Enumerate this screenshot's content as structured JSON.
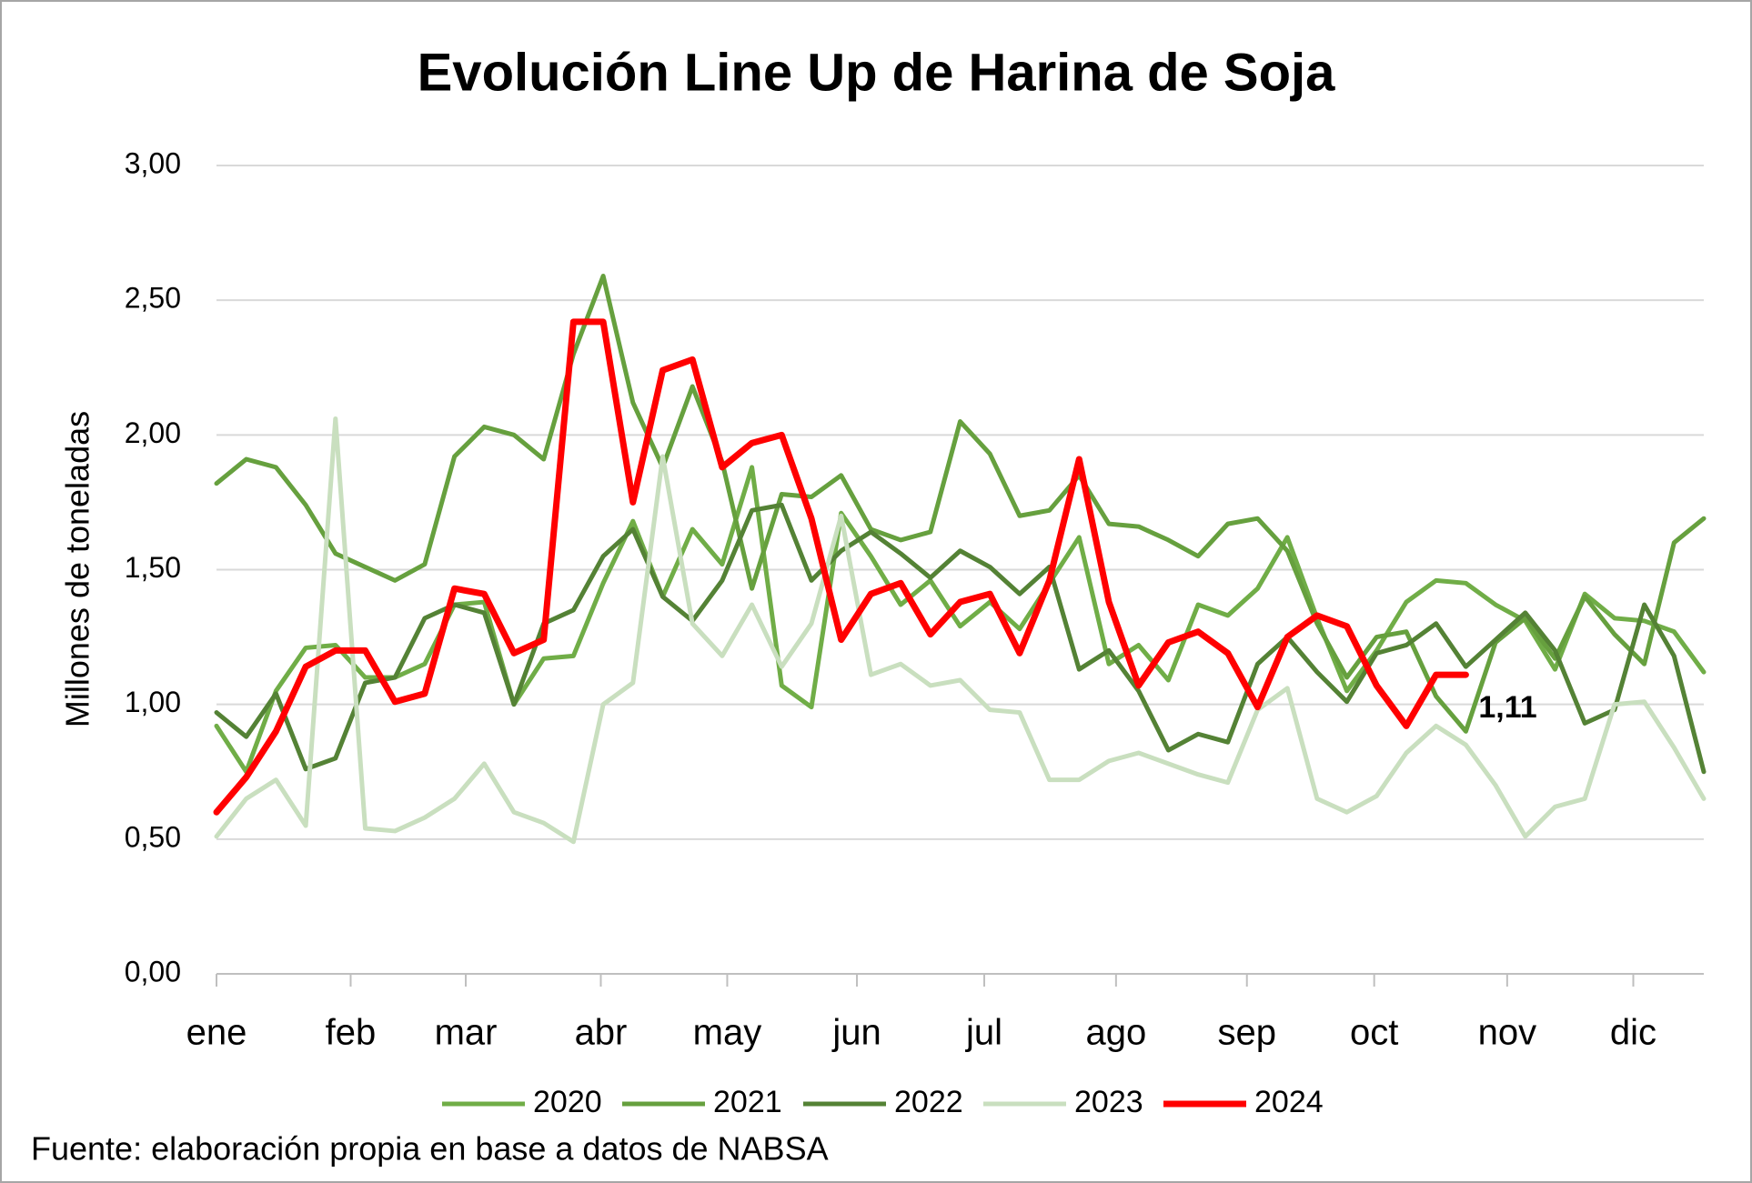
{
  "chart_data": {
    "type": "line",
    "title": "Evolución Line Up de Harina de Soja",
    "y_label": "Millones de toneladas",
    "source": "Fuente: elaboración propia en base a datos de NABSA",
    "x": [
      0,
      1,
      2,
      3,
      4,
      5,
      6,
      7,
      8,
      9,
      10,
      11,
      12,
      13,
      14,
      15,
      16,
      17,
      18,
      19,
      20,
      21,
      22,
      23,
      24,
      25,
      26,
      27,
      28,
      29,
      30,
      31,
      32,
      33,
      34,
      35,
      36,
      37,
      38,
      39,
      40,
      41,
      42,
      43,
      44,
      45,
      46,
      47,
      48,
      49,
      50
    ],
    "xlim": [
      0,
      50
    ],
    "xticks": [
      {
        "value": 0,
        "label": "ene"
      },
      {
        "value": 4.51,
        "label": "feb"
      },
      {
        "value": 8.38,
        "label": "mar"
      },
      {
        "value": 12.92,
        "label": "abr"
      },
      {
        "value": 17.17,
        "label": "may"
      },
      {
        "value": 21.53,
        "label": "jun"
      },
      {
        "value": 25.81,
        "label": "jul"
      },
      {
        "value": 30.24,
        "label": "ago"
      },
      {
        "value": 34.64,
        "label": "sep"
      },
      {
        "value": 38.92,
        "label": "oct"
      },
      {
        "value": 43.39,
        "label": "nov"
      },
      {
        "value": 47.63,
        "label": "dic"
      }
    ],
    "ylim": [
      0,
      3
    ],
    "yticks": [
      {
        "value": 0,
        "label": "0,00"
      },
      {
        "value": 0.5,
        "label": "0,50"
      },
      {
        "value": 1,
        "label": "1,00"
      },
      {
        "value": 1.5,
        "label": "1,50"
      },
      {
        "value": 2,
        "label": "2,00"
      },
      {
        "value": 2.5,
        "label": "2,50"
      },
      {
        "value": 3,
        "label": "3,00"
      }
    ],
    "grid": true,
    "legend": "bottom",
    "series": [
      {
        "name": "2020",
        "color": "#70ad47",
        "values": [
          0.92,
          0.75,
          1.05,
          1.21,
          1.22,
          1.1,
          1.1,
          1.15,
          1.37,
          1.38,
          1.0,
          1.17,
          1.18,
          1.45,
          1.68,
          1.4,
          1.65,
          1.52,
          1.88,
          1.07,
          0.99,
          1.71,
          1.55,
          1.37,
          1.46,
          1.29,
          1.38,
          1.28,
          1.45,
          1.62,
          1.15,
          1.22,
          1.09,
          1.37,
          1.33,
          1.43,
          1.62,
          1.32,
          1.05,
          1.2,
          1.38,
          1.46,
          1.45,
          1.37,
          1.31,
          1.13,
          1.41,
          1.32,
          1.31,
          1.27,
          1.12
        ]
      },
      {
        "name": "2021",
        "color": "#66a03e",
        "values": [
          1.82,
          1.91,
          1.88,
          1.74,
          1.56,
          1.51,
          1.46,
          1.52,
          1.92,
          2.03,
          2.0,
          1.91,
          2.3,
          2.59,
          2.12,
          1.88,
          2.18,
          1.9,
          1.43,
          1.78,
          1.77,
          1.85,
          1.65,
          1.61,
          1.64,
          2.05,
          1.93,
          1.7,
          1.72,
          1.85,
          1.67,
          1.66,
          1.61,
          1.55,
          1.67,
          1.69,
          1.57,
          1.3,
          1.1,
          1.25,
          1.27,
          1.03,
          0.9,
          1.23,
          1.32,
          1.17,
          1.4,
          1.26,
          1.15,
          1.6,
          1.69
        ]
      },
      {
        "name": "2022",
        "color": "#548235",
        "values": [
          0.97,
          0.88,
          1.04,
          0.76,
          0.8,
          1.08,
          1.1,
          1.32,
          1.37,
          1.34,
          1.0,
          1.3,
          1.35,
          1.55,
          1.65,
          1.4,
          1.31,
          1.46,
          1.72,
          1.74,
          1.46,
          1.57,
          1.64,
          1.56,
          1.47,
          1.57,
          1.51,
          1.41,
          1.51,
          1.13,
          1.2,
          1.05,
          0.83,
          0.89,
          0.86,
          1.15,
          1.25,
          1.12,
          1.01,
          1.19,
          1.22,
          1.3,
          1.14,
          1.24,
          1.34,
          1.2,
          0.93,
          0.98,
          1.37,
          1.18,
          0.75
        ]
      },
      {
        "name": "2023",
        "color": "#c9dfbf",
        "values": [
          0.51,
          0.65,
          0.72,
          0.55,
          2.06,
          0.54,
          0.53,
          0.58,
          0.65,
          0.78,
          0.6,
          0.56,
          0.49,
          1.0,
          1.08,
          1.92,
          1.3,
          1.18,
          1.37,
          1.14,
          1.3,
          1.7,
          1.11,
          1.15,
          1.07,
          1.09,
          0.98,
          0.97,
          0.72,
          0.72,
          0.79,
          0.82,
          0.78,
          0.74,
          0.71,
          0.98,
          1.06,
          0.65,
          0.6,
          0.66,
          0.82,
          0.92,
          0.85,
          0.7,
          0.51,
          0.62,
          0.65,
          1.0,
          1.01,
          0.84,
          0.65
        ]
      },
      {
        "name": "2024",
        "color": "#ff0000",
        "values": [
          0.6,
          0.73,
          0.9,
          1.14,
          1.2,
          1.2,
          1.01,
          1.04,
          1.43,
          1.41,
          1.19,
          1.24,
          2.42,
          2.42,
          1.75,
          2.24,
          2.28,
          1.88,
          1.97,
          2.0,
          1.69,
          1.24,
          1.41,
          1.45,
          1.26,
          1.38,
          1.41,
          1.19,
          1.46,
          1.91,
          1.38,
          1.07,
          1.23,
          1.27,
          1.19,
          0.99,
          1.25,
          1.33,
          1.29,
          1.07,
          0.92,
          1.11,
          1.11,
          null,
          null,
          null,
          null,
          null,
          null,
          null,
          null
        ],
        "value_labels": [
          null,
          null,
          null,
          null,
          null,
          null,
          null,
          null,
          null,
          null,
          null,
          null,
          null,
          null,
          null,
          null,
          null,
          null,
          null,
          null,
          null,
          null,
          null,
          null,
          null,
          null,
          null,
          null,
          null,
          null,
          null,
          null,
          null,
          null,
          null,
          null,
          null,
          null,
          null,
          null,
          null,
          null,
          "1,11",
          null,
          null,
          null,
          null,
          null,
          null,
          null,
          null
        ]
      }
    ]
  }
}
